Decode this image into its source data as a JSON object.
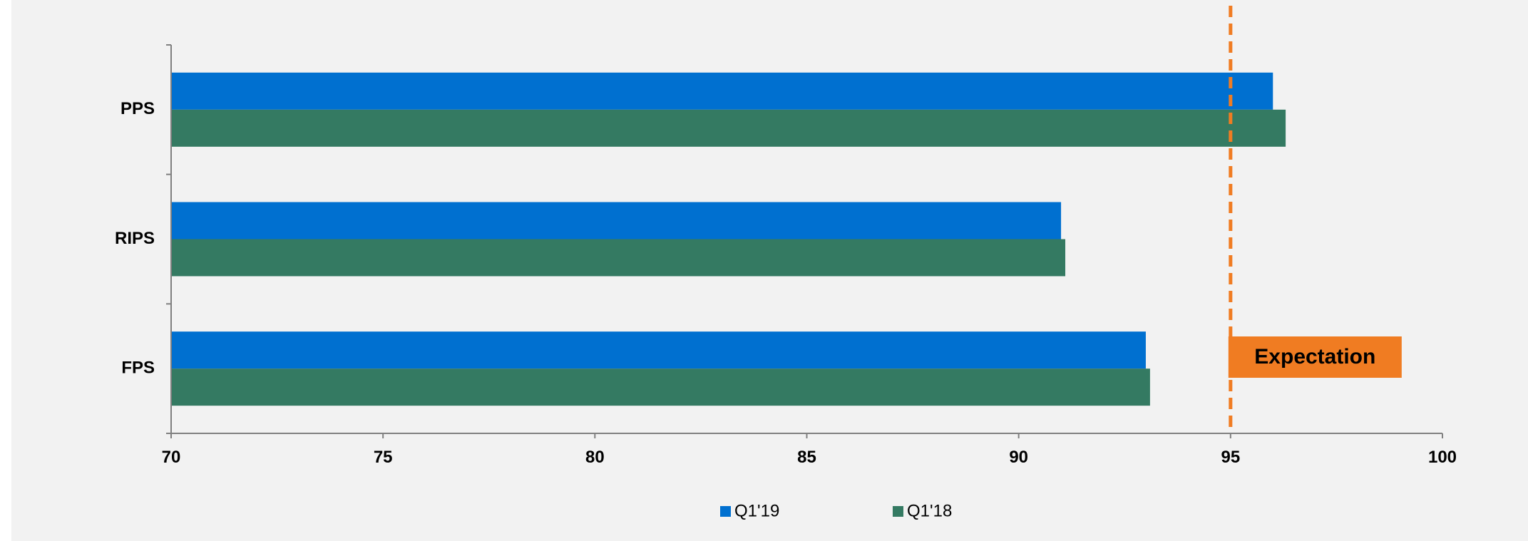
{
  "chart_data": {
    "type": "bar",
    "orientation": "horizontal",
    "categories": [
      "PPS",
      "RIPS",
      "FPS"
    ],
    "series": [
      {
        "name": "Q1'19",
        "values": [
          96.0,
          91.0,
          93.0
        ],
        "color": "#0070d0"
      },
      {
        "name": "Q1'18",
        "values": [
          96.3,
          91.1,
          93.1
        ],
        "color": "#347a62"
      }
    ],
    "xlim": [
      70,
      100
    ],
    "x_ticks": [
      "70",
      "75",
      "80",
      "85",
      "90",
      "95",
      "100"
    ],
    "reference_line": {
      "value": 95,
      "label": "Expectation",
      "color": "#f07c22"
    },
    "grid": false,
    "legend": "bottom"
  }
}
